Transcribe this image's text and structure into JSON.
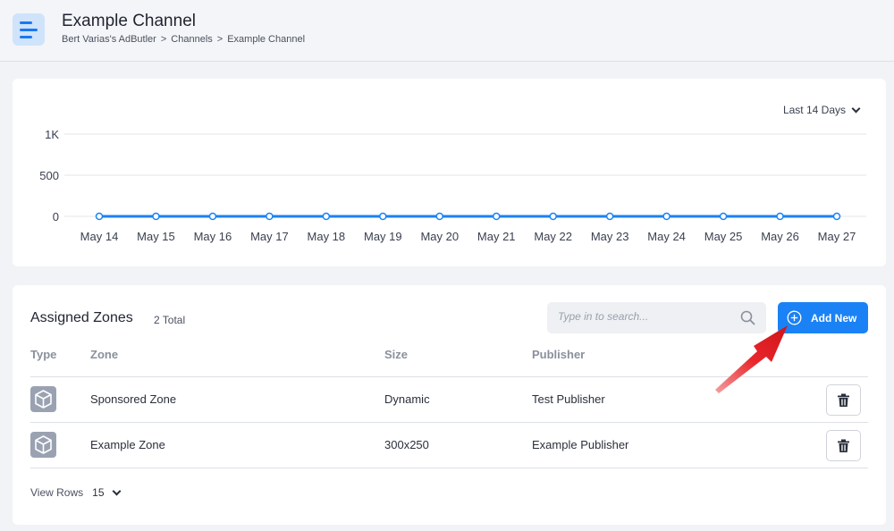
{
  "header": {
    "title": "Example Channel",
    "breadcrumb": [
      "Bert Varias's AdButler",
      "Channels",
      "Example Channel"
    ],
    "separator": ">"
  },
  "chart_controls": {
    "range_label": "Last 14 Days"
  },
  "chart_data": {
    "type": "line",
    "x": [
      "May 14",
      "May 15",
      "May 16",
      "May 17",
      "May 18",
      "May 19",
      "May 20",
      "May 21",
      "May 22",
      "May 23",
      "May 24",
      "May 25",
      "May 26",
      "May 27"
    ],
    "series": [
      {
        "values": [
          0,
          0,
          0,
          0,
          0,
          0,
          0,
          0,
          0,
          0,
          0,
          0,
          0,
          0
        ],
        "color": "#1a82f5"
      }
    ],
    "yticks": [
      0,
      500,
      1000
    ],
    "ytick_labels": [
      "0",
      "500",
      "1K"
    ],
    "ylim": [
      0,
      1000
    ],
    "grid": true
  },
  "zones": {
    "title": "Assigned Zones",
    "total": "2 Total",
    "search_placeholder": "Type in to search...",
    "add_label": "Add New",
    "columns": [
      "Type",
      "Zone",
      "Size",
      "Publisher"
    ],
    "rows": [
      {
        "zone": "Sponsored Zone",
        "size": "Dynamic",
        "publisher": "Test Publisher"
      },
      {
        "zone": "Example Zone",
        "size": "300x250",
        "publisher": "Example Publisher"
      }
    ],
    "view_rows_label": "View Rows",
    "view_rows_value": "15"
  },
  "colors": {
    "accent": "#1a82f5",
    "annotation_arrow": "#e8262b"
  }
}
